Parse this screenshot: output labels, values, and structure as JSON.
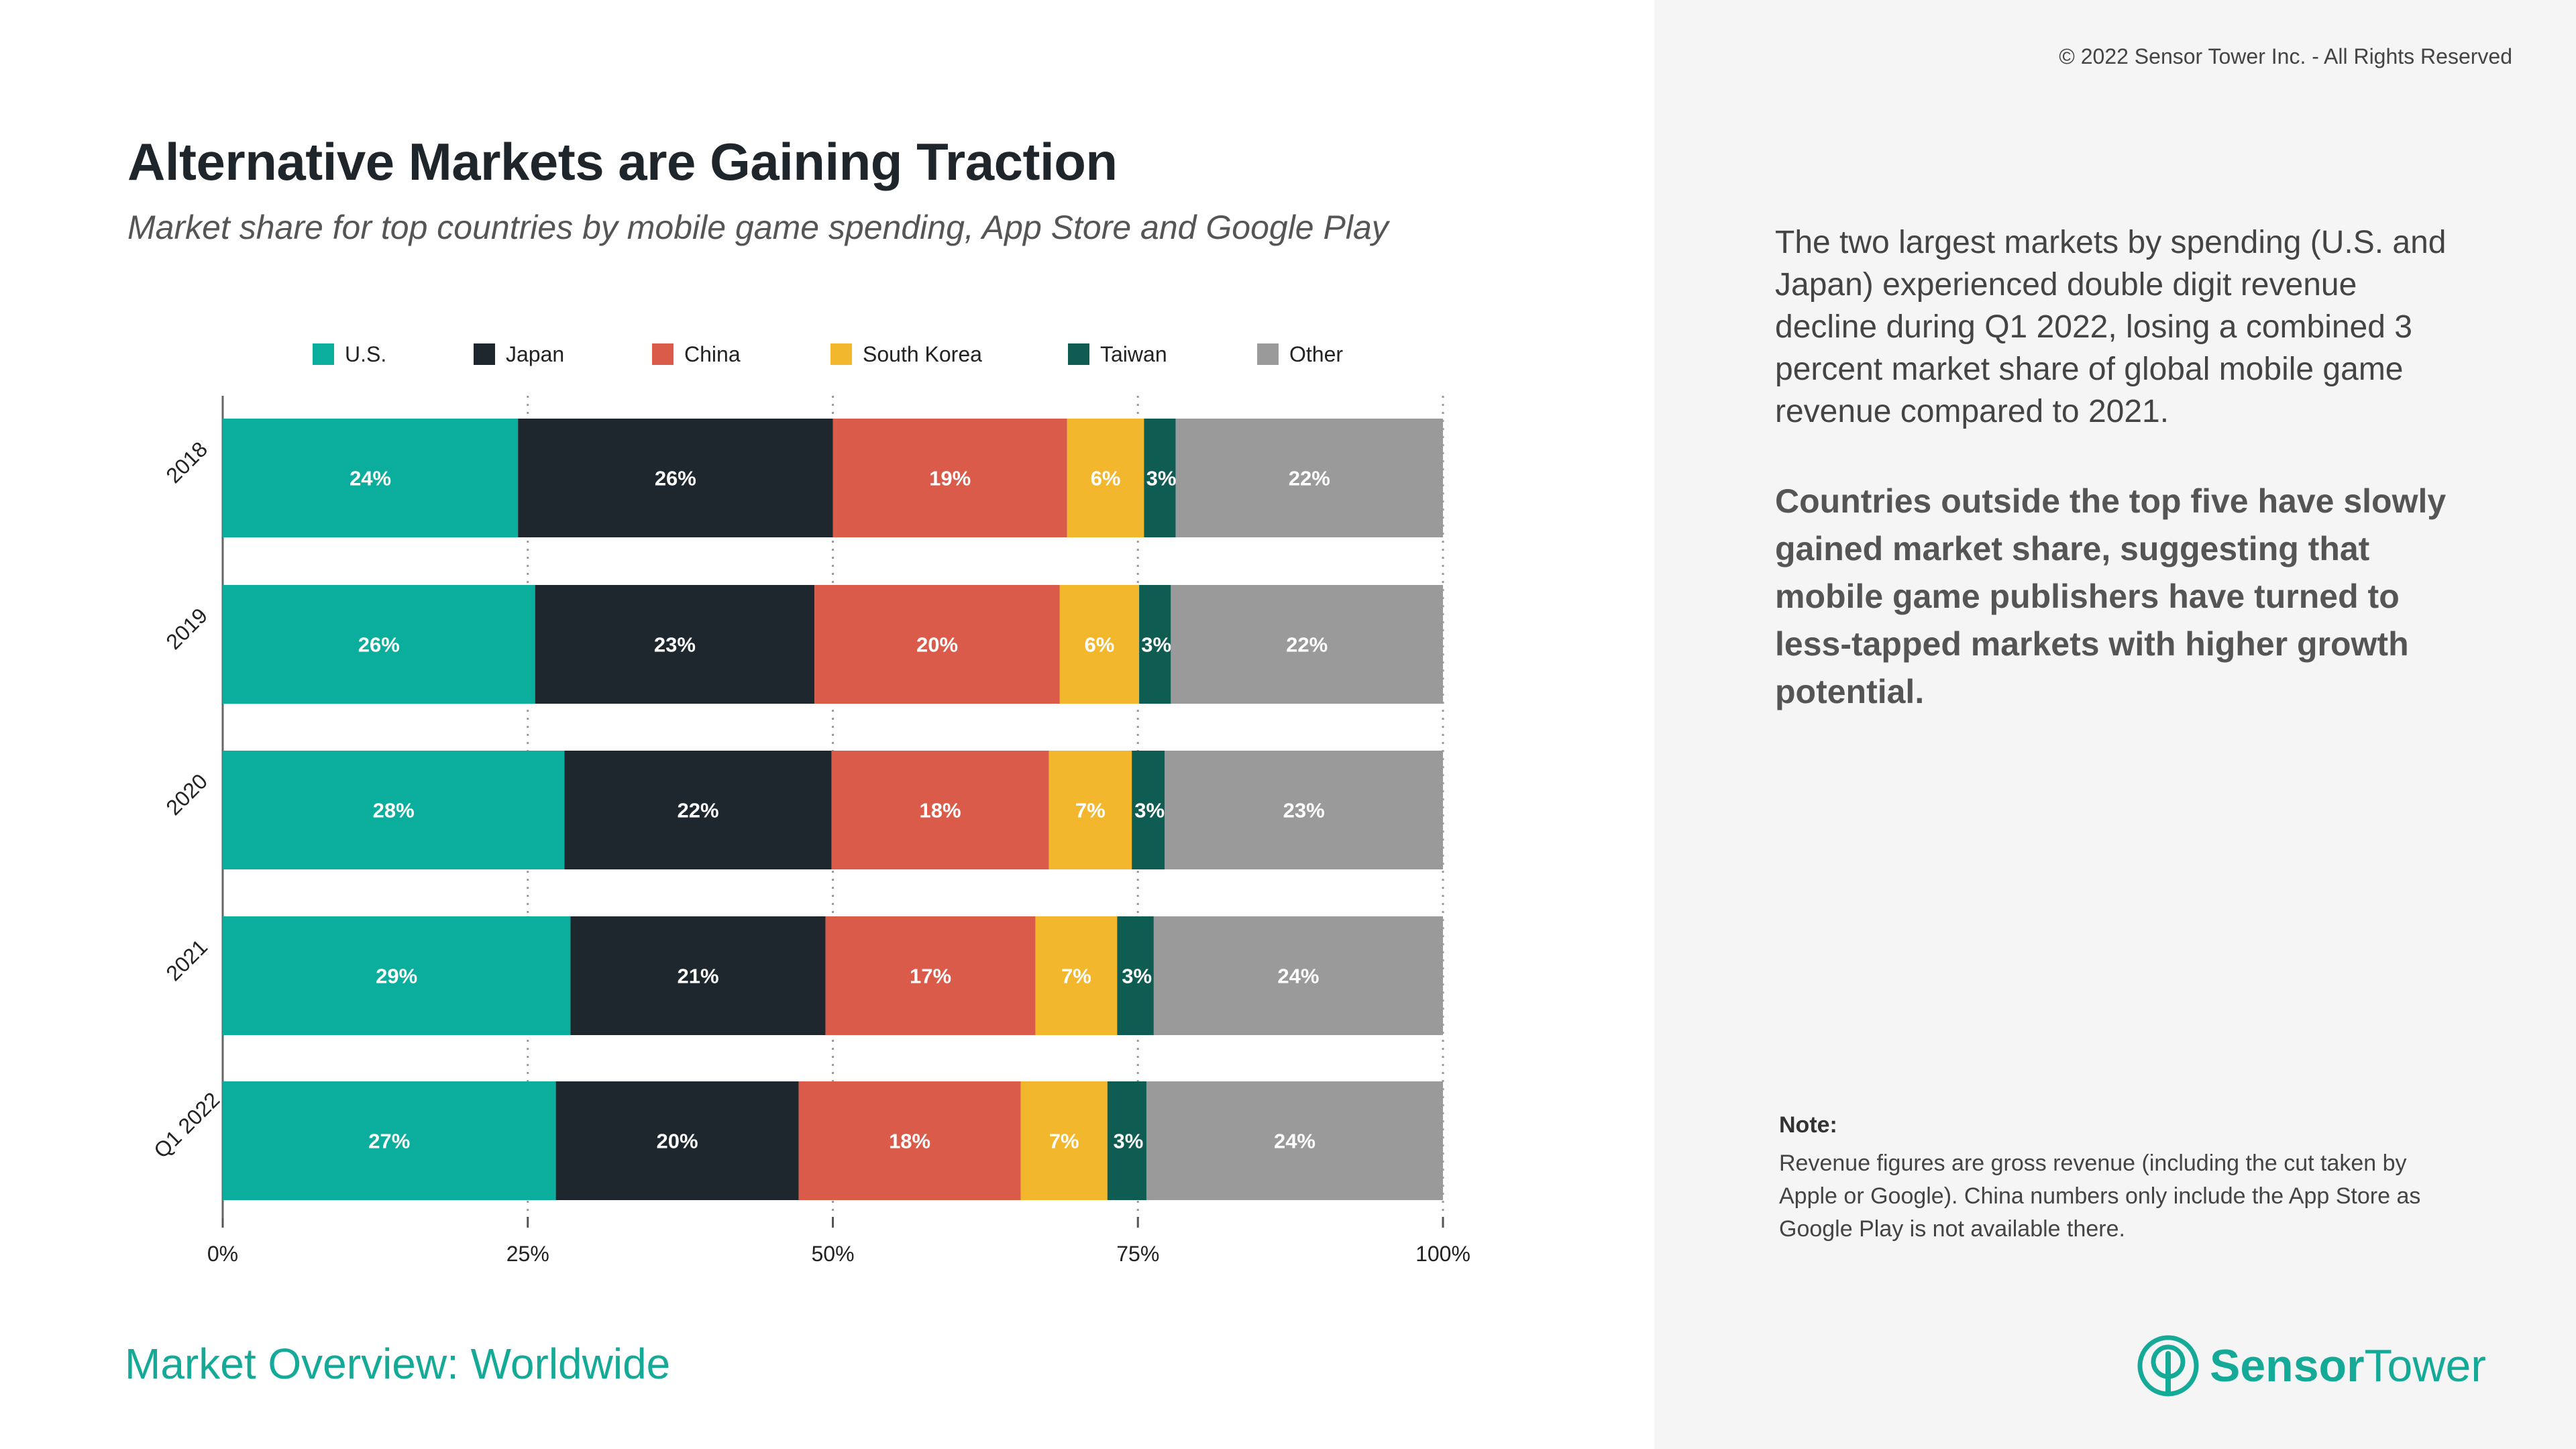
{
  "header": {
    "title": "Alternative Markets are Gaining Traction",
    "subtitle": "Market share for top countries by mobile game spending, App Store and Google Play",
    "copyright": "© 2022 Sensor Tower Inc. - All Rights Reserved"
  },
  "footer": {
    "title": "Market Overview: Worldwide",
    "logo_part1": "Sensor",
    "logo_part2": "Tower"
  },
  "sidebar": {
    "body": "The two largest markets by spending (U.S. and Japan) experienced double digit revenue decline during Q1 2022, losing a combined 3 percent market share of global mobile game revenue compared to 2021.",
    "highlight": "Countries outside the top five have slowly gained market share, suggesting that mobile game publishers have turned to less-tapped markets with higher growth potential.",
    "note_label": "Note:",
    "note": "Revenue figures are gross revenue (including the cut taken by Apple or Google). China numbers only include the App Store as Google Play is not available there."
  },
  "colors": {
    "accent": "#15aa98",
    "right_panel_bg": "#f5f5f5"
  },
  "chart_data": {
    "type": "bar",
    "orientation": "horizontal",
    "stacked": true,
    "percent": true,
    "categories": [
      "2018",
      "2019",
      "2020",
      "2021",
      "Q1 2022"
    ],
    "xlim": [
      0,
      100
    ],
    "x_ticks": [
      "0%",
      "25%",
      "50%",
      "75%",
      "100%"
    ],
    "grid": "vertical dotted",
    "legend_position": "top",
    "series": [
      {
        "name": "U.S.",
        "color": "#0bad9d",
        "values": [
          24.2,
          25.6,
          28.0,
          28.5,
          27.3
        ],
        "labels": [
          "24%",
          "26%",
          "28%",
          "29%",
          "27%"
        ]
      },
      {
        "name": "Japan",
        "color": "#1e272d",
        "values": [
          25.8,
          22.9,
          21.9,
          20.9,
          19.9
        ],
        "labels": [
          "26%",
          "23%",
          "22%",
          "21%",
          "20%"
        ]
      },
      {
        "name": "China",
        "color": "#db5b4b",
        "values": [
          19.2,
          20.1,
          17.8,
          17.2,
          18.2
        ],
        "labels": [
          "19%",
          "20%",
          "18%",
          "17%",
          "18%"
        ]
      },
      {
        "name": "South Korea",
        "color": "#f3b72d",
        "values": [
          6.3,
          6.5,
          6.8,
          6.7,
          7.1
        ],
        "labels": [
          "6%",
          "6%",
          "7%",
          "7%",
          "7%"
        ]
      },
      {
        "name": "Taiwan",
        "color": "#0f5c53",
        "values": [
          2.6,
          2.6,
          2.7,
          3.0,
          3.2
        ],
        "labels": [
          "3%",
          "3%",
          "3%",
          "3%",
          "3%"
        ]
      },
      {
        "name": "Other",
        "color": "#9a9a9a",
        "values": [
          21.9,
          22.3,
          22.8,
          23.7,
          24.3
        ],
        "labels": [
          "22%",
          "22%",
          "23%",
          "24%",
          "24%"
        ]
      }
    ]
  }
}
